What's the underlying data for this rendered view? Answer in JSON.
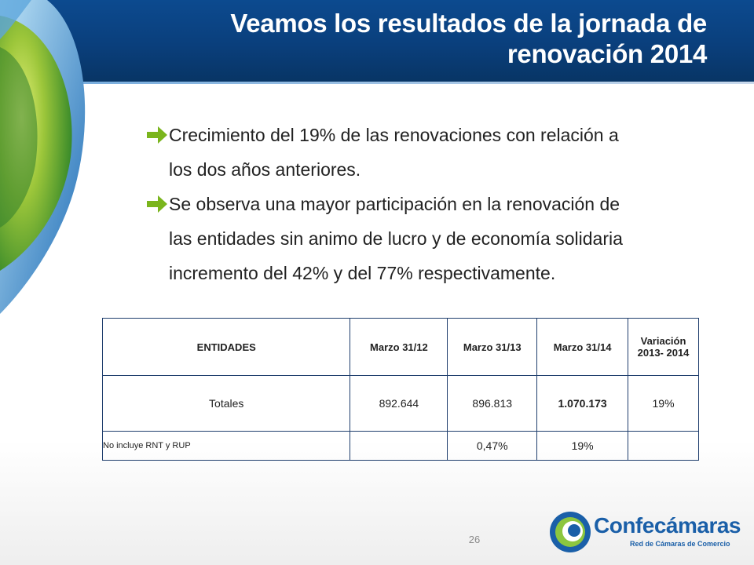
{
  "slide": {
    "title_line1": "Veamos  los resultados de la  jornada de",
    "title_line2": "renovación 2014",
    "page_number": "26"
  },
  "bullets": [
    {
      "line1": "Crecimiento del 19%  de las renovaciones con relación a",
      "line2": "los dos años anteriores."
    },
    {
      "line1": "Se observa una mayor participación  en la renovación de",
      "line2": "las entidades sin animo de lucro y de economía solidaria",
      "line3": "incremento del 42% y del 77% respectivamente."
    }
  ],
  "table": {
    "headers": [
      "ENTIDADES",
      "Marzo 31/12",
      "Marzo 31/13",
      "Marzo 31/14",
      "Variación 2013- 2014"
    ],
    "header_var_line1": "Variación",
    "header_var_line2": "2013- 2014",
    "totals_row": [
      "Totales",
      "892.644",
      "896.813",
      "1.070.173",
      "19%"
    ],
    "note_row": [
      "No incluye RNT  y RUP",
      "",
      "0,47%",
      "19%",
      ""
    ]
  },
  "logo": {
    "name_part1": "Conf",
    "name_part2": "ecámaras",
    "tagline": "Red de Cámaras de Comercio"
  },
  "colors": {
    "header_blue": "#0a3f7c",
    "arrow_green": "#7ab51d",
    "table_border": "#1f3e6d",
    "logo_blue": "#1a5fa8"
  }
}
